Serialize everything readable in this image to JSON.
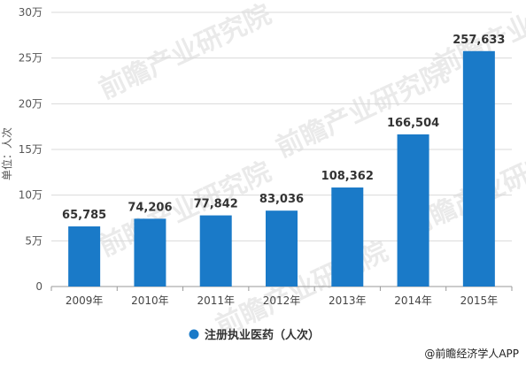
{
  "chart_data": {
    "type": "bar",
    "ylabel": "单位：人次",
    "categories": [
      "2009年",
      "2010年",
      "2011年",
      "2012年",
      "2013年",
      "2014年",
      "2015年"
    ],
    "values": [
      65785,
      74206,
      77842,
      83036,
      108362,
      166504,
      257633
    ],
    "value_labels": [
      "65,785",
      "74,206",
      "77,842",
      "83,036",
      "108,362",
      "166,504",
      "257,633"
    ],
    "ylim": [
      0,
      300000
    ],
    "yticks": [
      0,
      50000,
      100000,
      150000,
      200000,
      250000,
      300000
    ],
    "ytick_labels": [
      "0",
      "5万",
      "10万",
      "15万",
      "20万",
      "25万",
      "30万"
    ],
    "grid": true,
    "legend": {
      "label": "注册执业医药（人次）",
      "position": "bottom"
    },
    "bar_color": "#1a7ac8"
  },
  "watermark_text": "前瞻产业研究院",
  "source": "@前瞻经济学人APP"
}
